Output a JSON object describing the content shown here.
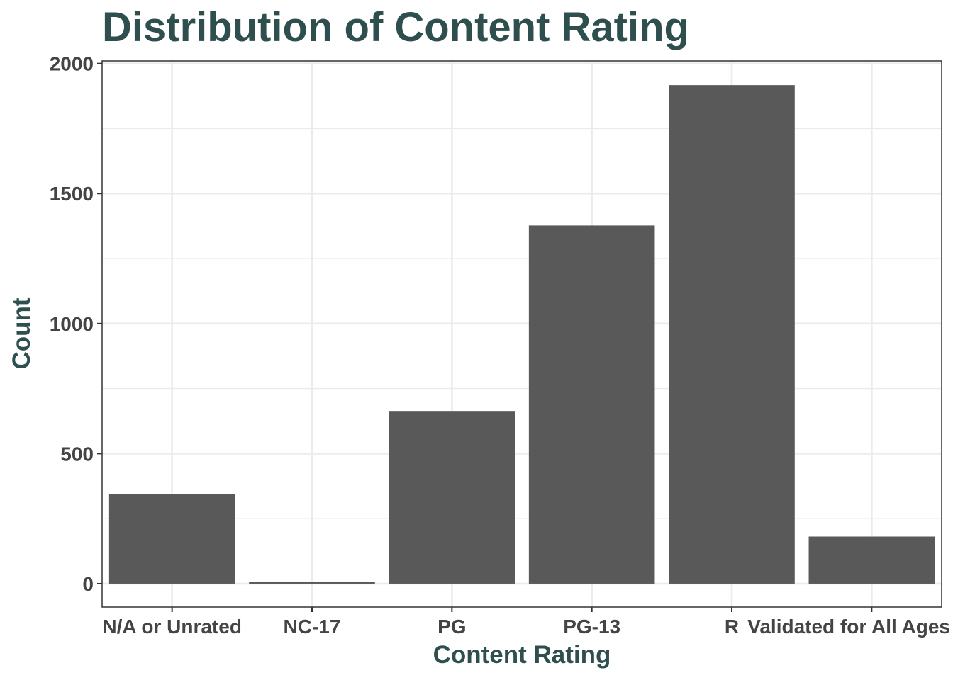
{
  "chart_data": {
    "type": "bar",
    "title": "Distribution of Content Rating",
    "xlabel": "Content Rating",
    "ylabel": "Count",
    "categories": [
      "N/A or Unrated",
      "NC-17",
      "PG",
      "PG-13",
      "R",
      "Validated for All Ages"
    ],
    "values": [
      345,
      8,
      664,
      1377,
      1917,
      181
    ],
    "ylim": [
      -90,
      2010
    ],
    "yticks": [
      0,
      500,
      1000,
      1500,
      2000
    ],
    "grid": true,
    "legend": "none",
    "bar_color": "#595959"
  }
}
